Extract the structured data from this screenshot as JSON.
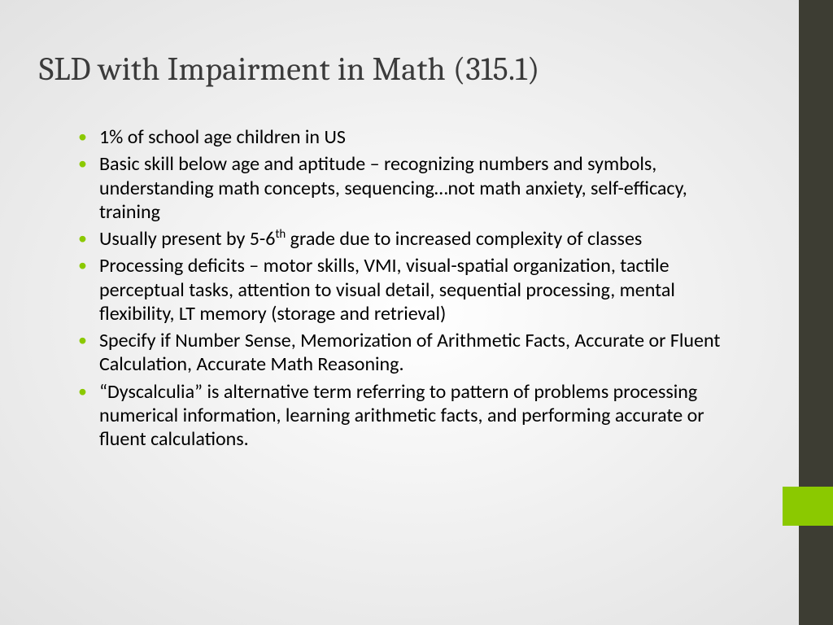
{
  "slide": {
    "title": "SLD with Impairment in Math (315.1)",
    "bullets": [
      "1% of school age children in US",
      "Basic skill below age and aptitude – recognizing numbers and symbols, understanding math concepts, sequencing…not math anxiety, self-efficacy, training",
      "",
      "Processing deficits – motor skills, VMI, visual-spatial organization, tactile perceptual tasks, attention to visual detail, sequential processing, mental flexibility, LT memory (storage and retrieval)",
      "Specify if Number Sense, Memorization of Arithmetic Facts, Accurate or Fluent Calculation, Accurate Math Reasoning.",
      "“Dyscalculia” is alternative term referring to pattern of problems processing numerical information, learning arithmetic facts, and performing accurate or fluent calculations."
    ],
    "bullet3_pre": "Usually present by 5-6",
    "bullet3_sup": "th",
    "bullet3_post": " grade due to increased complexity of classes"
  },
  "style": {
    "bullet_color": "#8bc900",
    "sidebar_color": "#3d3d33",
    "accent_color": "#8bc900",
    "title_color": "#3b3b3b",
    "body_color": "#000000",
    "title_fontsize": 40,
    "body_fontsize": 24
  }
}
